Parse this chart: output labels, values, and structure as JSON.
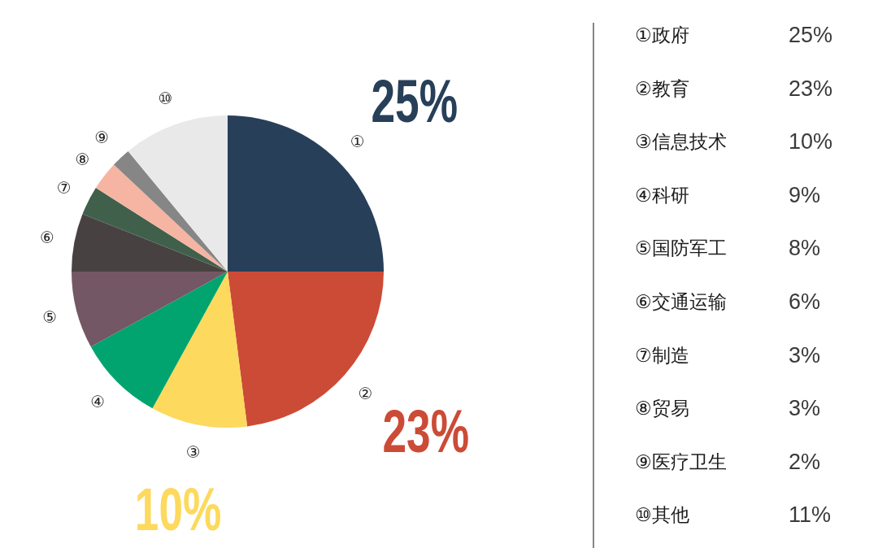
{
  "chart_data": [
    {
      "type": "pie",
      "categories": [
        "①",
        "②",
        "③",
        "④",
        "⑤",
        "⑥",
        "⑦",
        "⑧",
        "⑨",
        "⑩"
      ],
      "values": [
        25,
        23,
        10,
        9,
        8,
        6,
        3,
        3,
        2,
        11
      ],
      "colors": [
        "#283f59",
        "#cc4b36",
        "#fdd95d",
        "#01a46e",
        "#745764",
        "#474241",
        "#40604c",
        "#f5b5a2",
        "#868686",
        "#e8e9e8"
      ],
      "value_labels": [
        "25%",
        "23%",
        "10%",
        null,
        null,
        null,
        null,
        null,
        null,
        null
      ]
    },
    {
      "type": "other",
      "annotations": [
        "①政府",
        "25%",
        "②教育",
        "23%",
        "③信息技术",
        "10%",
        "④科研",
        "9%",
        "⑤国防军工",
        "8%",
        "⑥交通运输",
        "6%",
        "⑦制造",
        "3%",
        "⑧贸易",
        "3%",
        "⑨医疗卫生",
        "2%",
        "⑩其他",
        "11%"
      ]
    }
  ]
}
